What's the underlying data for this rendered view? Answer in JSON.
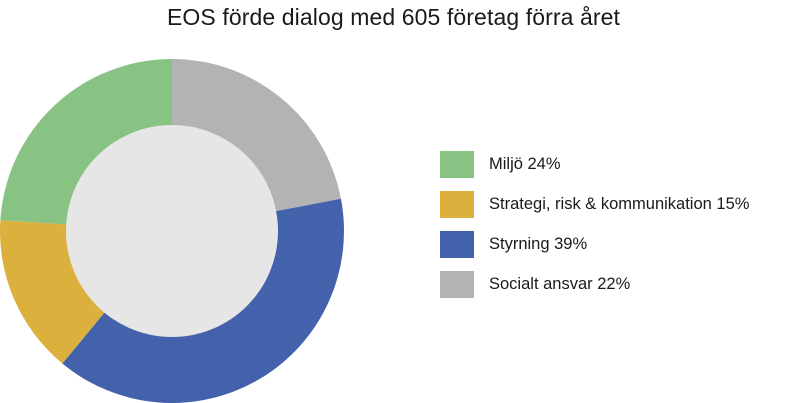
{
  "chart_data": {
    "type": "pie",
    "title": "EOS förde dialog med 605 företag förra året",
    "donut": true,
    "legend_position": "right",
    "center_color": "#e6e6e6",
    "slices": [
      {
        "label": "Miljö 24%",
        "value": 24,
        "color": "#88c383"
      },
      {
        "label": "Strategi, risk & kommunikation 15%",
        "value": 15,
        "color": "#dcb03c"
      },
      {
        "label": "Styrning 39%",
        "value": 39,
        "color": "#4462ab"
      },
      {
        "label": "Socialt ansvar 22%",
        "value": 22,
        "color": "#b3b3b3"
      }
    ],
    "draw_order": [
      3,
      2,
      1,
      0
    ]
  }
}
